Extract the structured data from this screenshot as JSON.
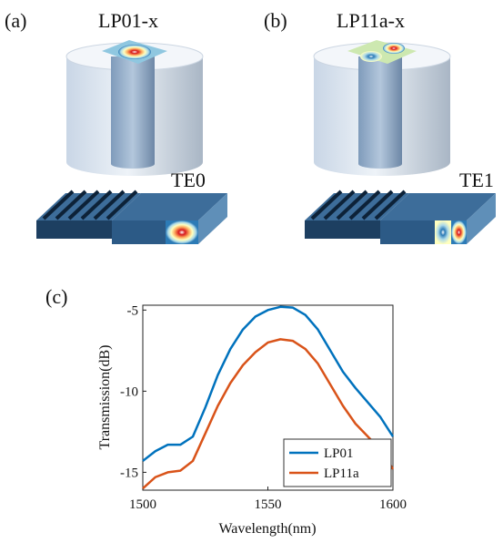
{
  "diagrams": {
    "panel_a": {
      "label": "(a)",
      "mode_in": "LP01-x",
      "mode_out": "TE0"
    },
    "panel_b": {
      "label": "(b)",
      "mode_in": "LP11a-x",
      "mode_out": "TE1"
    }
  },
  "chart_data": {
    "type": "line",
    "panel_label": "(c)",
    "x_label": "Wavelength(nm)",
    "y_label": "Transmission(dB)",
    "x": [
      1500,
      1505,
      1510,
      1515,
      1520,
      1525,
      1530,
      1535,
      1540,
      1545,
      1550,
      1555,
      1560,
      1565,
      1570,
      1575,
      1580,
      1585,
      1590,
      1595,
      1600
    ],
    "series": [
      {
        "name": "LP01",
        "color": "#0072bd",
        "values": [
          -14.3,
          -13.7,
          -13.3,
          -13.3,
          -12.8,
          -11.0,
          -9.0,
          -7.4,
          -6.2,
          -5.4,
          -5.0,
          -4.8,
          -4.85,
          -5.3,
          -6.2,
          -7.5,
          -8.8,
          -9.8,
          -10.7,
          -11.6,
          -12.8
        ]
      },
      {
        "name": "LP11a",
        "color": "#d95319",
        "values": [
          -16.0,
          -15.3,
          -15.0,
          -14.9,
          -14.3,
          -12.6,
          -10.9,
          -9.5,
          -8.4,
          -7.6,
          -7.0,
          -6.8,
          -6.9,
          -7.4,
          -8.3,
          -9.6,
          -10.9,
          -12.0,
          -12.8,
          -13.6,
          -14.8
        ]
      }
    ],
    "xlim": [
      1500,
      1600
    ],
    "xticks": [
      1500,
      1550,
      1600
    ],
    "ylim": [
      -16.1,
      -4.7
    ],
    "yticks": [
      -5,
      -10,
      -15
    ],
    "legend": "lower-right"
  }
}
